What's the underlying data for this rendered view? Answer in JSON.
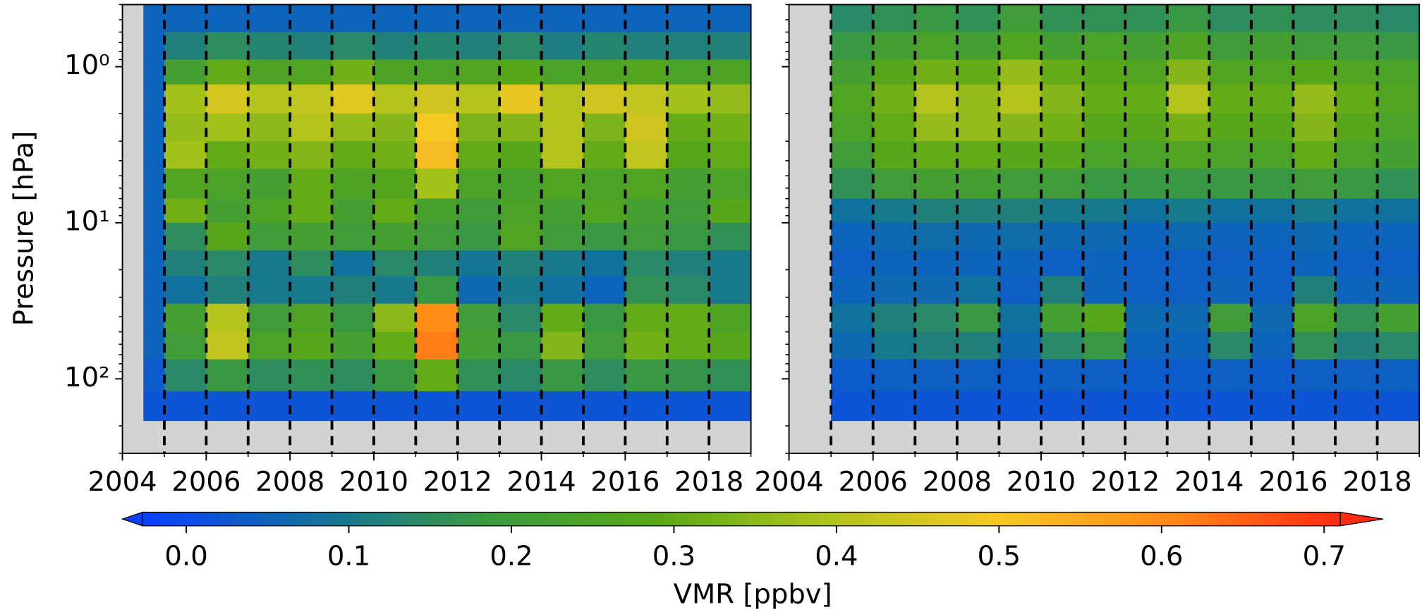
{
  "chart_data": [
    {
      "type": "heatmap",
      "ylabel": "Pressure [hPa]",
      "log_y": true,
      "xlim": [
        2004,
        2019
      ],
      "xticks": [
        2004,
        2006,
        2008,
        2010,
        2012,
        2014,
        2016,
        2018
      ],
      "ylim": [
        300,
        0.4
      ],
      "yticks": [
        {
          "value": 1,
          "label": "10⁰"
        },
        {
          "value": 10,
          "label": "10¹"
        },
        {
          "value": 100,
          "label": "10²"
        }
      ],
      "vlines": [
        2005,
        2006,
        2007,
        2008,
        2009,
        2010,
        2011,
        2012,
        2013,
        2014,
        2015,
        2016,
        2017,
        2018
      ],
      "x_edges": [
        2004.5,
        2005,
        2006,
        2007,
        2008,
        2009,
        2010,
        2011,
        2012,
        2013,
        2014,
        2015,
        2016,
        2017,
        2018,
        2019
      ],
      "y_edges": [
        0.4,
        0.6,
        0.9,
        1.3,
        2,
        3,
        4.5,
        7,
        10,
        15,
        22,
        33,
        50,
        75,
        120,
        185
      ],
      "z": [
        [
          0.05,
          0.05,
          0.05,
          0.05,
          0.05,
          0.05,
          0.05,
          0.05,
          0.05,
          0.05,
          0.05,
          0.05,
          0.05,
          0.05,
          0.05
        ],
        [
          0.05,
          0.12,
          0.15,
          0.13,
          0.12,
          0.14,
          0.12,
          0.13,
          0.12,
          0.14,
          0.11,
          0.13,
          0.12,
          0.12,
          0.12
        ],
        [
          0.05,
          0.22,
          0.3,
          0.25,
          0.26,
          0.32,
          0.25,
          0.24,
          0.26,
          0.28,
          0.24,
          0.25,
          0.27,
          0.24,
          0.25
        ],
        [
          0.05,
          0.38,
          0.45,
          0.4,
          0.42,
          0.47,
          0.4,
          0.44,
          0.4,
          0.48,
          0.4,
          0.44,
          0.42,
          0.38,
          0.36
        ],
        [
          0.05,
          0.36,
          0.38,
          0.35,
          0.4,
          0.36,
          0.34,
          0.5,
          0.33,
          0.34,
          0.4,
          0.33,
          0.44,
          0.3,
          0.32
        ],
        [
          0.05,
          0.38,
          0.3,
          0.32,
          0.34,
          0.3,
          0.32,
          0.52,
          0.3,
          0.28,
          0.4,
          0.3,
          0.42,
          0.28,
          0.3
        ],
        [
          0.05,
          0.26,
          0.24,
          0.22,
          0.3,
          0.25,
          0.27,
          0.38,
          0.24,
          0.23,
          0.26,
          0.24,
          0.26,
          0.22,
          0.24
        ],
        [
          0.05,
          0.32,
          0.22,
          0.25,
          0.3,
          0.22,
          0.3,
          0.23,
          0.2,
          0.24,
          0.22,
          0.26,
          0.22,
          0.2,
          0.28
        ],
        [
          0.05,
          0.15,
          0.28,
          0.2,
          0.22,
          0.2,
          0.22,
          0.2,
          0.18,
          0.26,
          0.2,
          0.18,
          0.2,
          0.18,
          0.16
        ],
        [
          0.05,
          0.12,
          0.14,
          0.1,
          0.15,
          0.08,
          0.14,
          0.12,
          0.09,
          0.12,
          0.1,
          0.08,
          0.14,
          0.12,
          0.1
        ],
        [
          0.05,
          0.08,
          0.12,
          0.1,
          0.1,
          0.12,
          0.1,
          0.18,
          0.06,
          0.1,
          0.08,
          0.05,
          0.16,
          0.14,
          0.1
        ],
        [
          0.05,
          0.22,
          0.4,
          0.2,
          0.25,
          0.18,
          0.35,
          0.6,
          0.2,
          0.14,
          0.3,
          0.18,
          0.3,
          0.3,
          0.25
        ],
        [
          0.05,
          0.2,
          0.42,
          0.24,
          0.28,
          0.22,
          0.3,
          0.62,
          0.22,
          0.18,
          0.34,
          0.2,
          0.32,
          0.3,
          0.28
        ],
        [
          0.03,
          0.14,
          0.18,
          0.15,
          0.16,
          0.15,
          0.18,
          0.3,
          0.16,
          0.14,
          0.18,
          0.15,
          0.18,
          0.17,
          0.16
        ],
        [
          0.02,
          0.02,
          0.02,
          0.02,
          0.02,
          0.02,
          0.02,
          0.02,
          0.02,
          0.02,
          0.02,
          0.02,
          0.02,
          0.02,
          0.02
        ]
      ]
    },
    {
      "type": "heatmap",
      "log_y": true,
      "xlim": [
        2004,
        2019
      ],
      "xticks": [
        2004,
        2006,
        2008,
        2010,
        2012,
        2014,
        2016,
        2018
      ],
      "ylim": [
        300,
        0.4
      ],
      "yticks": [
        1,
        10,
        100
      ],
      "vlines": [
        2005,
        2006,
        2007,
        2008,
        2009,
        2010,
        2011,
        2012,
        2013,
        2014,
        2015,
        2016,
        2017,
        2018
      ],
      "x_edges": [
        2004.5,
        2005,
        2006,
        2007,
        2008,
        2009,
        2010,
        2011,
        2012,
        2013,
        2014,
        2015,
        2016,
        2017,
        2018,
        2019
      ],
      "y_edges": [
        0.4,
        0.6,
        0.9,
        1.3,
        2,
        3,
        4.5,
        7,
        10,
        15,
        22,
        33,
        50,
        75,
        120,
        185
      ],
      "z": [
        [
          null,
          0.14,
          0.16,
          0.18,
          0.16,
          0.2,
          0.16,
          0.16,
          0.16,
          0.18,
          0.15,
          0.16,
          0.15,
          0.15,
          0.14
        ],
        [
          null,
          0.18,
          0.22,
          0.24,
          0.22,
          0.26,
          0.22,
          0.24,
          0.22,
          0.25,
          0.2,
          0.22,
          0.2,
          0.2,
          0.18
        ],
        [
          null,
          0.22,
          0.28,
          0.32,
          0.3,
          0.36,
          0.3,
          0.28,
          0.26,
          0.34,
          0.26,
          0.26,
          0.28,
          0.26,
          0.24
        ],
        [
          null,
          0.26,
          0.32,
          0.4,
          0.36,
          0.4,
          0.34,
          0.3,
          0.3,
          0.4,
          0.3,
          0.3,
          0.36,
          0.3,
          0.26
        ],
        [
          null,
          0.24,
          0.3,
          0.36,
          0.36,
          0.34,
          0.32,
          0.28,
          0.28,
          0.32,
          0.28,
          0.28,
          0.34,
          0.28,
          0.24
        ],
        [
          null,
          0.2,
          0.28,
          0.3,
          0.3,
          0.28,
          0.28,
          0.24,
          0.24,
          0.26,
          0.24,
          0.24,
          0.3,
          0.24,
          0.22
        ],
        [
          null,
          0.16,
          0.2,
          0.22,
          0.22,
          0.2,
          0.2,
          0.18,
          0.18,
          0.18,
          0.18,
          0.18,
          0.2,
          0.18,
          0.16
        ],
        [
          null,
          0.08,
          0.1,
          0.12,
          0.12,
          0.12,
          0.1,
          0.1,
          0.08,
          0.1,
          0.08,
          0.08,
          0.1,
          0.08,
          0.08
        ],
        [
          null,
          0.05,
          0.06,
          0.07,
          0.06,
          0.07,
          0.06,
          0.06,
          0.05,
          0.06,
          0.05,
          0.05,
          0.06,
          0.05,
          0.05
        ],
        [
          null,
          0.04,
          0.05,
          0.05,
          0.05,
          0.05,
          0.04,
          0.05,
          0.04,
          0.04,
          0.04,
          0.04,
          0.05,
          0.04,
          0.04
        ],
        [
          null,
          0.05,
          0.06,
          0.06,
          0.08,
          0.04,
          0.12,
          0.05,
          0.04,
          0.04,
          0.05,
          0.04,
          0.12,
          0.05,
          0.05
        ],
        [
          null,
          0.08,
          0.12,
          0.14,
          0.18,
          0.08,
          0.22,
          0.28,
          0.06,
          0.06,
          0.2,
          0.06,
          0.24,
          0.16,
          0.22
        ],
        [
          null,
          0.06,
          0.1,
          0.12,
          0.12,
          0.06,
          0.14,
          0.18,
          0.05,
          0.05,
          0.14,
          0.05,
          0.16,
          0.12,
          0.14
        ],
        [
          null,
          0.03,
          0.04,
          0.04,
          0.04,
          0.03,
          0.04,
          0.04,
          0.03,
          0.03,
          0.04,
          0.03,
          0.04,
          0.04,
          0.04
        ],
        [
          null,
          0.02,
          0.02,
          0.02,
          0.02,
          0.02,
          0.02,
          0.02,
          0.02,
          0.02,
          0.02,
          0.02,
          0.02,
          0.02,
          0.02
        ]
      ]
    }
  ],
  "colorbar": {
    "label": "VMR [ppbv]",
    "clim": [
      -0.027,
      0.71
    ],
    "extend": "both",
    "colormap": [
      "#0a40ff",
      "#1070a0",
      "#3a9a40",
      "#5aa816",
      "#b0c41c",
      "#f5c823",
      "#ff8a18",
      "#ff2a12"
    ],
    "ticks": [
      {
        "value": 0,
        "label": "0.0"
      },
      {
        "value": 0.1,
        "label": "0.1"
      },
      {
        "value": 0.2,
        "label": "0.2"
      },
      {
        "value": 0.3,
        "label": "0.3"
      },
      {
        "value": 0.4,
        "label": "0.4"
      },
      {
        "value": 0.5,
        "label": "0.5"
      },
      {
        "value": 0.6,
        "label": "0.6"
      },
      {
        "value": 0.7,
        "label": "0.7"
      }
    ]
  },
  "style": {
    "missing_color": "#d3d3d3",
    "vline_color": "#000000"
  }
}
